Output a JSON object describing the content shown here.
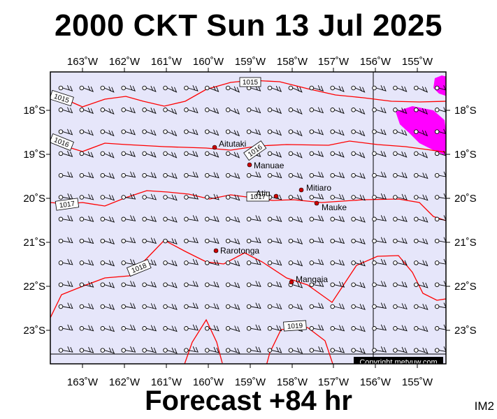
{
  "title": "2000 CKT Sun 13 Jul 2025",
  "footer": "Forecast +84 hr",
  "map_code": "IM2",
  "copyright": "Copyright metvuw.com",
  "colors": {
    "ocean": "#e6e6fa",
    "isobar": "#ff0000",
    "rain": "#ff00ff",
    "town": "#cc0000",
    "barb": "#000000"
  },
  "lon_labels": [
    "163˚W",
    "162˚W",
    "161˚W",
    "160˚W",
    "159˚W",
    "158˚W",
    "157˚W",
    "156˚W",
    "155˚W"
  ],
  "lat_labels": [
    "18˚S",
    "19˚S",
    "20˚S",
    "21˚S",
    "22˚S",
    "23˚S"
  ],
  "isobar_labels": [
    "1015",
    "1015",
    "1016",
    "1016",
    "1017",
    "1017",
    "1018",
    "1019"
  ],
  "towns": [
    "Aitutaki",
    "Manuae",
    "Atiu",
    "Mitiaro",
    "Mauke",
    "Rarotonga",
    "Mangaia"
  ]
}
